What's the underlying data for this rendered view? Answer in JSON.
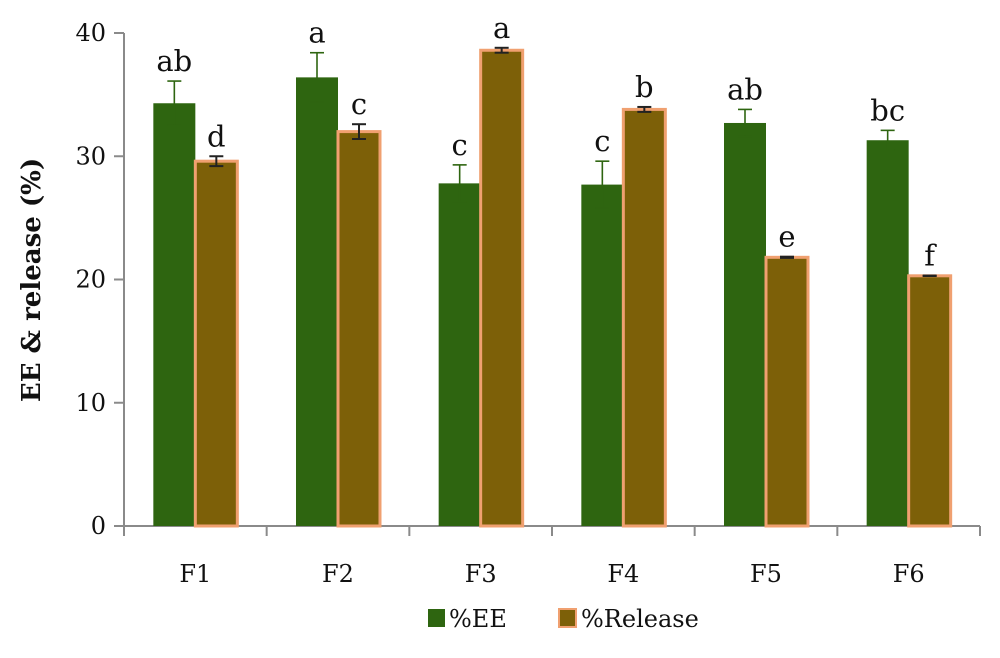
{
  "chart_data": {
    "type": "bar",
    "categories": [
      "F1",
      "F2",
      "F3",
      "F4",
      "F5",
      "F6"
    ],
    "ylabel": "EE & release (%)",
    "xlabel": "",
    "ylim": [
      0,
      40
    ],
    "yticks": [
      0,
      10,
      20,
      30,
      40
    ],
    "grid": false,
    "legend_position": "bottom",
    "series": [
      {
        "name": "%EE",
        "color": "#2e6510",
        "values": [
          34.3,
          36.4,
          27.8,
          27.7,
          32.7,
          31.3
        ],
        "errors": [
          1.8,
          2.0,
          1.5,
          1.9,
          1.1,
          0.8
        ],
        "labels": [
          "ab",
          "a",
          "c",
          "c",
          "ab",
          "bc"
        ]
      },
      {
        "name": "%Release",
        "color": "#7d6008",
        "edge_color": "#f0a070",
        "values": [
          29.6,
          32.0,
          38.6,
          33.8,
          21.8,
          20.3
        ],
        "errors": [
          0.4,
          0.6,
          0.2,
          0.2,
          0.05,
          0.02
        ],
        "labels": [
          "d",
          "c",
          "a",
          "b",
          "e",
          "f"
        ]
      }
    ]
  }
}
